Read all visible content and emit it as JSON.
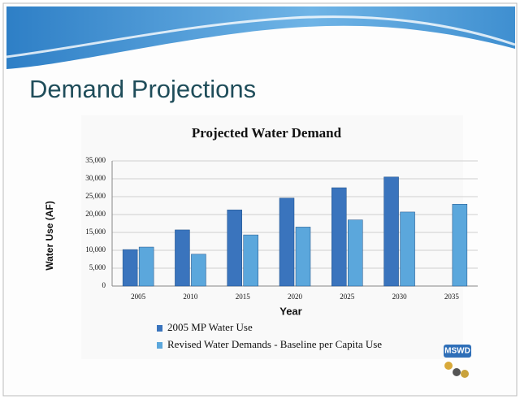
{
  "slide_title": "Demand Projections",
  "logo": "MSWD",
  "chart_data": {
    "type": "bar",
    "title": "Projected Water Demand",
    "x_label": "Year",
    "y_label": "Water Use (AF)",
    "categories": [
      "2005",
      "2010",
      "2015",
      "2020",
      "2025",
      "2030",
      "2035"
    ],
    "series": [
      {
        "name": "2005 MP Water Use",
        "color": "#3a74bd",
        "values": [
          10200,
          15700,
          21300,
          24600,
          27500,
          30500,
          null
        ]
      },
      {
        "name": "Revised Water Demands - Baseline per Capita Use",
        "color": "#5ba7dc",
        "values": [
          10900,
          8900,
          14300,
          16500,
          18500,
          20700,
          22900
        ]
      }
    ],
    "ylim": [
      0,
      35000
    ],
    "yticks": [
      0,
      {
        "value": 5000,
        "label": "5,000"
      },
      {
        "value": 10000,
        "label": "10,000"
      },
      {
        "value": 15000,
        "label": "15,000"
      },
      {
        "value": 20000,
        "label": "20,000"
      },
      {
        "value": 25000,
        "label": "25,000"
      },
      {
        "value": 30000,
        "label": "30,000"
      },
      {
        "value": 35000,
        "label": "35,000"
      }
    ],
    "grid": true
  }
}
